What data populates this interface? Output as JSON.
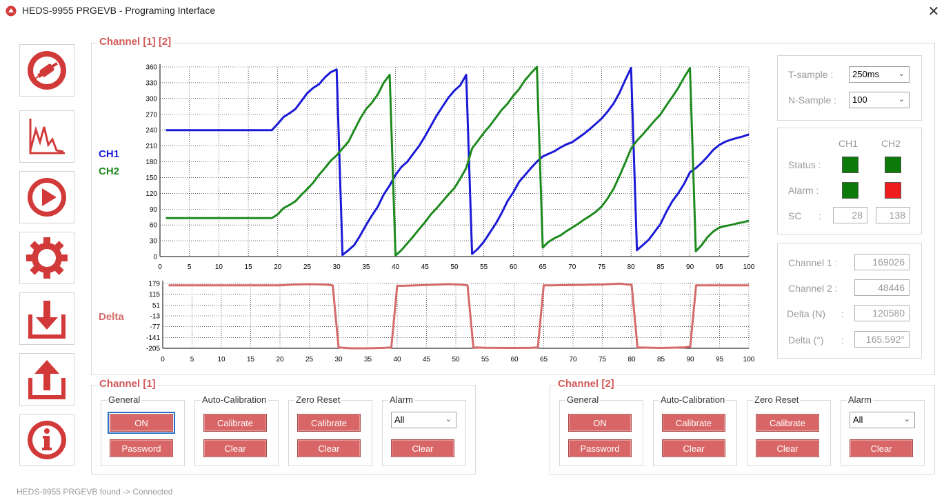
{
  "window": {
    "title": "HEDS-9955 PRGEVB - Programing Interface",
    "close_glyph": "✕"
  },
  "toolbar": {
    "items": [
      {
        "icon": "connect-icon"
      },
      {
        "icon": "chart-icon"
      },
      {
        "icon": "play-icon"
      },
      {
        "icon": "gear-icon"
      },
      {
        "icon": "download-icon"
      },
      {
        "icon": "upload-icon"
      },
      {
        "icon": "info-icon"
      }
    ]
  },
  "chart_panel": {
    "title": "Channel [1] [2]",
    "legend_ch1": "CH1",
    "legend_ch2": "CH2",
    "delta_label": "Delta"
  },
  "colors": {
    "ch1": "#1a1ad6",
    "ch2": "#1e8a1e",
    "delta": "#d46a6a",
    "accent": "#d25a5a",
    "status_ok": "#0b7a0b",
    "alarm_red": "#ee1c1c"
  },
  "chart_data": [
    {
      "type": "line",
      "x_range": [
        0,
        100
      ],
      "ylim": [
        0,
        360
      ],
      "x_ticks": [
        0,
        5,
        10,
        15,
        20,
        25,
        30,
        35,
        40,
        45,
        50,
        55,
        60,
        65,
        70,
        75,
        80,
        85,
        90,
        95,
        100
      ],
      "y_ticks": [
        0,
        30,
        60,
        90,
        120,
        150,
        180,
        210,
        240,
        270,
        300,
        330,
        360
      ],
      "grid": true,
      "series": [
        {
          "name": "CH1",
          "x": [
            1,
            19,
            20,
            21,
            22,
            23,
            24,
            25,
            26,
            27,
            28,
            29,
            30,
            31,
            32,
            33,
            34,
            35,
            36,
            37,
            38,
            39,
            40,
            41,
            42,
            43,
            44,
            45,
            46,
            47,
            48,
            49,
            50,
            51,
            52,
            53,
            54,
            55,
            56,
            57,
            58,
            59,
            60,
            61,
            62,
            63,
            64,
            65,
            66,
            67,
            68,
            69,
            70,
            71,
            72,
            73,
            74,
            75,
            76,
            77,
            78,
            79,
            80,
            81,
            82,
            83,
            84,
            85,
            86,
            87,
            88,
            89,
            90,
            91,
            92,
            93,
            94,
            95,
            96,
            97,
            98,
            99,
            100
          ],
          "y": [
            240,
            240,
            252,
            265,
            272,
            280,
            295,
            310,
            320,
            327,
            340,
            350,
            355,
            3,
            12,
            22,
            40,
            60,
            78,
            95,
            118,
            135,
            155,
            170,
            180,
            195,
            210,
            228,
            248,
            268,
            285,
            302,
            315,
            325,
            345,
            5,
            15,
            28,
            45,
            62,
            82,
            105,
            122,
            142,
            155,
            168,
            180,
            190,
            195,
            200,
            207,
            213,
            217,
            225,
            233,
            242,
            252,
            262,
            275,
            290,
            310,
            335,
            358,
            12,
            22,
            32,
            47,
            62,
            85,
            105,
            120,
            138,
            160,
            168,
            178,
            190,
            203,
            212,
            218,
            222,
            225,
            228,
            232
          ]
        },
        {
          "name": "CH2",
          "x": [
            1,
            19,
            20,
            21,
            22,
            23,
            24,
            25,
            26,
            27,
            28,
            29,
            30,
            31,
            32,
            33,
            34,
            35,
            36,
            37,
            38,
            39,
            40,
            41,
            42,
            43,
            44,
            45,
            46,
            47,
            48,
            49,
            50,
            51,
            52,
            53,
            54,
            55,
            56,
            57,
            58,
            59,
            60,
            61,
            62,
            63,
            64,
            65,
            66,
            67,
            68,
            69,
            70,
            71,
            72,
            73,
            74,
            75,
            76,
            77,
            78,
            79,
            80,
            81,
            82,
            83,
            84,
            85,
            86,
            87,
            88,
            89,
            90,
            91,
            92,
            93,
            94,
            95,
            96,
            97,
            98,
            99,
            100
          ],
          "y": [
            73,
            73,
            80,
            92,
            98,
            105,
            117,
            128,
            140,
            155,
            168,
            182,
            192,
            205,
            218,
            240,
            262,
            280,
            292,
            308,
            330,
            345,
            2,
            12,
            25,
            38,
            52,
            65,
            80,
            92,
            105,
            118,
            130,
            148,
            168,
            205,
            220,
            235,
            248,
            263,
            278,
            290,
            305,
            318,
            335,
            348,
            360,
            17,
            28,
            35,
            40,
            48,
            55,
            62,
            70,
            77,
            85,
            95,
            110,
            128,
            152,
            178,
            205,
            220,
            232,
            245,
            258,
            270,
            287,
            303,
            320,
            340,
            358,
            10,
            22,
            37,
            48,
            55,
            58,
            60,
            63,
            65,
            68
          ]
        }
      ]
    },
    {
      "type": "line",
      "x_range": [
        0,
        100
      ],
      "ylim": [
        -205,
        179
      ],
      "x_ticks": [
        0,
        5,
        10,
        15,
        20,
        25,
        30,
        35,
        40,
        45,
        50,
        55,
        60,
        65,
        70,
        75,
        80,
        85,
        90,
        95,
        100
      ],
      "y_ticks": [
        179,
        115,
        51,
        -13,
        -77,
        -141,
        -205
      ],
      "grid": true,
      "series": [
        {
          "name": "Delta",
          "x": [
            1,
            19,
            20,
            22,
            25,
            28,
            29,
            30,
            32,
            35,
            38,
            39,
            40,
            41,
            45,
            49,
            51,
            52,
            53,
            55,
            60,
            63,
            64,
            65,
            66,
            70,
            75,
            78,
            80,
            81,
            85,
            89,
            90,
            91,
            92,
            95,
            100
          ],
          "y": [
            168,
            168,
            168,
            172,
            175,
            172,
            168,
            -200,
            -205,
            -205,
            -202,
            -200,
            165,
            165,
            170,
            175,
            172,
            168,
            -200,
            -202,
            -203,
            -202,
            -200,
            168,
            168,
            170,
            173,
            178,
            170,
            -200,
            -203,
            -200,
            -195,
            168,
            168,
            168,
            168
          ]
        }
      ]
    }
  ],
  "settings": {
    "t_sample_label": "T-sample :",
    "t_sample_value": "250ms",
    "n_sample_label": "N-Sample :",
    "n_sample_value": "100"
  },
  "status_panel": {
    "col_ch1": "CH1",
    "col_ch2": "CH2",
    "status_label": "Status :",
    "alarm_label": "Alarm :",
    "sc_label": "SC",
    "sc_colon": ":",
    "sc_ch1": "28",
    "sc_ch2": "138"
  },
  "readout": {
    "ch1_label": "Channel 1 :",
    "ch1_value": "169026",
    "ch2_label": "Channel 2 :",
    "ch2_value": "48446",
    "delta_n_label": "Delta (N)",
    "delta_n_colon": ":",
    "delta_n_value": "120580",
    "delta_deg_label": "Delta (°)",
    "delta_deg_colon": ":",
    "delta_deg_value": "165.592°"
  },
  "channel1": {
    "title": "Channel [1]",
    "general_title": "General",
    "on_label": "ON",
    "password_label": "Password",
    "autocal_title": "Auto-Calibration",
    "calibrate_label": "Calibrate",
    "clear_label": "Clear",
    "zero_title": "Zero Reset",
    "zero_calibrate_label": "Calibrate",
    "zero_clear_label": "Clear",
    "alarm_title": "Alarm",
    "alarm_value": "All",
    "alarm_clear_label": "Clear"
  },
  "channel2": {
    "title": "Channel [2]",
    "general_title": "General",
    "on_label": "ON",
    "password_label": "Password",
    "autocal_title": "Auto-Calibration",
    "calibrate_label": "Calibrate",
    "clear_label": "Clear",
    "zero_title": "Zero Reset",
    "zero_calibrate_label": "Calibrate",
    "zero_clear_label": "Clear",
    "alarm_title": "Alarm",
    "alarm_value": "All",
    "alarm_clear_label": "Clear"
  },
  "status_bar": {
    "text": "HEDS-9955 PRGEVB found -> Connected"
  }
}
